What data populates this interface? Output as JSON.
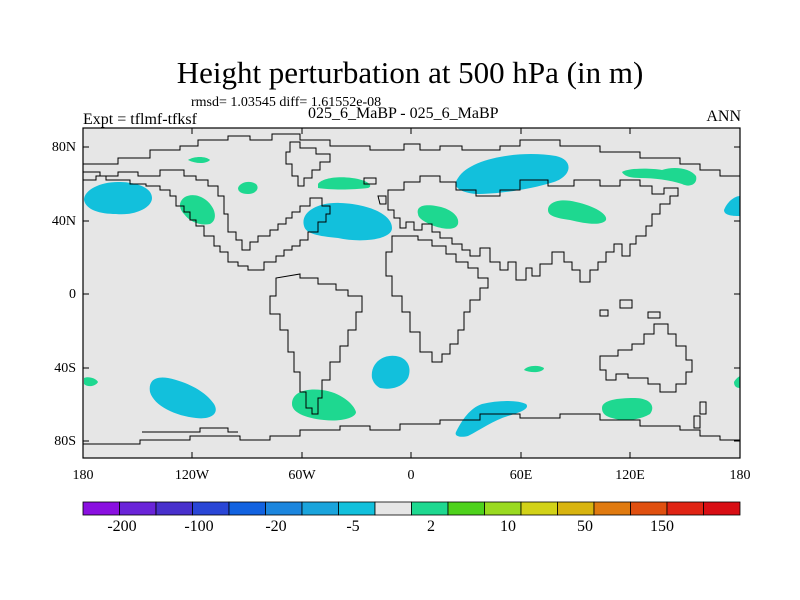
{
  "header": {
    "title": "Height perturbation at 500 hPa (in m)",
    "stats": "rmsd= 1.03545 diff= 1.61552e-08",
    "subtitle": "025_6_MaBP - 025_6_MaBP",
    "left_label": "Expt = tflmf-tfksf",
    "right_label": "ANN"
  },
  "axes": {
    "lat_ticks": [
      "80N",
      "40N",
      "0",
      "40S",
      "80S"
    ],
    "lon_ticks": [
      "180",
      "120W",
      "60W",
      "0",
      "60E",
      "120E",
      "180"
    ]
  },
  "colorbar": {
    "colors": [
      "#8a10e0",
      "#6a24d8",
      "#4830cc",
      "#2a46d6",
      "#1262e0",
      "#1c86de",
      "#1aa4dc",
      "#12c0dc",
      "#e6e6e6",
      "#1ed890",
      "#4ed21c",
      "#9ada20",
      "#d2d218",
      "#d8b410",
      "#e07a10",
      "#e05010",
      "#e02414",
      "#d80e14"
    ],
    "labels": [
      "-200",
      "-100",
      "-20",
      "-5",
      "2",
      "10",
      "50",
      "150"
    ]
  },
  "colors": {
    "land_background": "#e6e6e6",
    "negative_anomaly": "#12c0dc",
    "positive_anomaly": "#1ed890",
    "coastline": "#000000"
  }
}
